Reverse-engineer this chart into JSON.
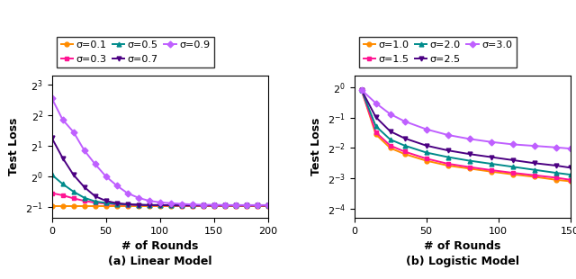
{
  "left": {
    "title": "(a) Linear Model",
    "xlabel": "# of Rounds",
    "ylabel": "Test Loss",
    "xlim": [
      0,
      200
    ],
    "xticks": [
      0,
      50,
      100,
      150,
      200
    ],
    "yticks_exp": [
      -1,
      0,
      1,
      2,
      3
    ],
    "ylim_exp": [
      -1.35,
      3.3
    ],
    "series": [
      {
        "label": "σ=0.1",
        "color": "#FF8C00",
        "marker": "o",
        "x": [
          0,
          10,
          20,
          30,
          40,
          50,
          60,
          70,
          80,
          90,
          100,
          110,
          120,
          130,
          140,
          150,
          160,
          170,
          180,
          190,
          200
        ],
        "y_exp": [
          -0.97,
          -0.97,
          -0.97,
          -0.97,
          -0.97,
          -0.97,
          -0.97,
          -0.97,
          -0.97,
          -0.97,
          -0.97,
          -0.97,
          -0.97,
          -0.97,
          -0.97,
          -0.97,
          -0.97,
          -0.97,
          -0.97,
          -0.97,
          -0.97
        ]
      },
      {
        "label": "σ=0.3",
        "color": "#FF1493",
        "marker": "s",
        "x": [
          0,
          10,
          20,
          30,
          40,
          50,
          60,
          70,
          80,
          90,
          100,
          110,
          120,
          130,
          140,
          150,
          160,
          170,
          180,
          190,
          200
        ],
        "y_exp": [
          -0.55,
          -0.62,
          -0.72,
          -0.8,
          -0.86,
          -0.89,
          -0.92,
          -0.93,
          -0.94,
          -0.95,
          -0.95,
          -0.95,
          -0.96,
          -0.96,
          -0.96,
          -0.96,
          -0.96,
          -0.96,
          -0.96,
          -0.96,
          -0.96
        ]
      },
      {
        "label": "σ=0.5",
        "color": "#008B8B",
        "marker": "^",
        "x": [
          0,
          10,
          20,
          30,
          40,
          50,
          60,
          70,
          80,
          90,
          100,
          110,
          120,
          130,
          140,
          150,
          160,
          170,
          180,
          190,
          200
        ],
        "y_exp": [
          0.05,
          -0.25,
          -0.5,
          -0.7,
          -0.82,
          -0.87,
          -0.9,
          -0.92,
          -0.93,
          -0.94,
          -0.94,
          -0.95,
          -0.95,
          -0.95,
          -0.95,
          -0.95,
          -0.95,
          -0.95,
          -0.95,
          -0.95,
          -0.95
        ]
      },
      {
        "label": "σ=0.7",
        "color": "#4B0082",
        "marker": "v",
        "x": [
          0,
          10,
          20,
          30,
          40,
          50,
          60,
          70,
          80,
          90,
          100,
          110,
          120,
          130,
          140,
          150,
          160,
          170,
          180,
          190,
          200
        ],
        "y_exp": [
          1.25,
          0.6,
          0.05,
          -0.35,
          -0.65,
          -0.8,
          -0.88,
          -0.91,
          -0.93,
          -0.94,
          -0.94,
          -0.95,
          -0.95,
          -0.95,
          -0.95,
          -0.95,
          -0.95,
          -0.95,
          -0.95,
          -0.95,
          -0.95
        ]
      },
      {
        "label": "σ=0.9",
        "color": "#BF5FFF",
        "marker": "D",
        "x": [
          0,
          10,
          20,
          30,
          40,
          50,
          60,
          70,
          80,
          90,
          100,
          110,
          120,
          130,
          140,
          150,
          160,
          170,
          180,
          190,
          200
        ],
        "y_exp": [
          2.55,
          1.85,
          1.45,
          0.85,
          0.4,
          0.0,
          -0.3,
          -0.55,
          -0.7,
          -0.8,
          -0.85,
          -0.88,
          -0.9,
          -0.92,
          -0.93,
          -0.93,
          -0.94,
          -0.94,
          -0.94,
          -0.94,
          -0.94
        ]
      }
    ]
  },
  "right": {
    "title": "(b) Logistic Model",
    "xlabel": "# of Rounds",
    "ylabel": "Test Loss",
    "xlim": [
      0,
      150
    ],
    "xticks": [
      0,
      50,
      100,
      150
    ],
    "yticks_exp": [
      -4,
      -3,
      -2,
      -1,
      0
    ],
    "ylim_exp": [
      -4.3,
      0.4
    ],
    "series": [
      {
        "label": "σ=1.0",
        "color": "#FF8C00",
        "marker": "o",
        "x": [
          5,
          15,
          25,
          35,
          50,
          65,
          80,
          95,
          110,
          125,
          140,
          150
        ],
        "y_exp": [
          -0.08,
          -1.55,
          -2.0,
          -2.2,
          -2.42,
          -2.58,
          -2.68,
          -2.78,
          -2.87,
          -2.95,
          -3.05,
          -3.1
        ]
      },
      {
        "label": "σ=1.5",
        "color": "#FF1493",
        "marker": "s",
        "x": [
          5,
          15,
          25,
          35,
          50,
          65,
          80,
          95,
          110,
          125,
          140,
          150
        ],
        "y_exp": [
          -0.08,
          -1.48,
          -1.92,
          -2.12,
          -2.35,
          -2.52,
          -2.63,
          -2.73,
          -2.82,
          -2.9,
          -2.98,
          -3.05
        ]
      },
      {
        "label": "σ=2.0",
        "color": "#008B8B",
        "marker": "^",
        "x": [
          5,
          15,
          25,
          35,
          50,
          65,
          80,
          95,
          110,
          125,
          140,
          150
        ],
        "y_exp": [
          -0.08,
          -1.28,
          -1.72,
          -1.92,
          -2.15,
          -2.3,
          -2.42,
          -2.52,
          -2.62,
          -2.72,
          -2.82,
          -2.88
        ]
      },
      {
        "label": "σ=2.5",
        "color": "#4B0082",
        "marker": "v",
        "x": [
          5,
          15,
          25,
          35,
          50,
          65,
          80,
          95,
          110,
          125,
          140,
          150
        ],
        "y_exp": [
          -0.08,
          -0.98,
          -1.45,
          -1.68,
          -1.92,
          -2.08,
          -2.2,
          -2.3,
          -2.4,
          -2.5,
          -2.58,
          -2.65
        ]
      },
      {
        "label": "σ=3.0",
        "color": "#BF5FFF",
        "marker": "D",
        "x": [
          5,
          15,
          25,
          35,
          50,
          65,
          80,
          95,
          110,
          125,
          140,
          150
        ],
        "y_exp": [
          -0.08,
          -0.52,
          -0.88,
          -1.12,
          -1.38,
          -1.57,
          -1.7,
          -1.8,
          -1.88,
          -1.93,
          -1.98,
          -2.02
        ]
      }
    ]
  }
}
